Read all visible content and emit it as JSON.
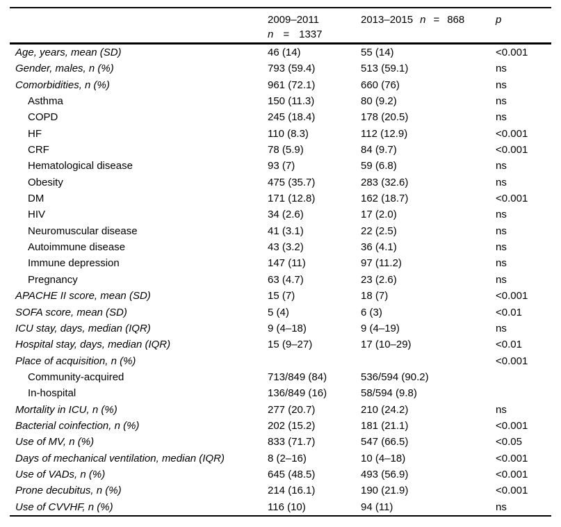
{
  "colors": {
    "text": "#000000",
    "background": "#ffffff",
    "rule": "#000000"
  },
  "table": {
    "columns": {
      "period1": {
        "range": "2009–2011",
        "n_label": "n",
        "equals": "=",
        "n_value": "1337"
      },
      "period2": {
        "range": "2013–2015",
        "n_label": "n",
        "equals": "=",
        "n_value": "868"
      },
      "p_label": "p"
    },
    "rows": [
      {
        "label": "Age, years, mean (SD)",
        "italic": true,
        "indent": false,
        "period1": "46 (14)",
        "period2": "55 (14)",
        "p": "<0.001"
      },
      {
        "label": "Gender, males, n (%)",
        "italic": true,
        "indent": false,
        "period1": "793 (59.4)",
        "period2": "513 (59.1)",
        "p": "ns"
      },
      {
        "label": "Comorbidities, n (%)",
        "italic": true,
        "indent": false,
        "period1": "961 (72.1)",
        "period2": "660 (76)",
        "p": "ns"
      },
      {
        "label": "Asthma",
        "italic": false,
        "indent": true,
        "period1": "150 (11.3)",
        "period2": "80 (9.2)",
        "p": "ns"
      },
      {
        "label": "COPD",
        "italic": false,
        "indent": true,
        "period1": "245 (18.4)",
        "period2": "178 (20.5)",
        "p": "ns"
      },
      {
        "label": "HF",
        "italic": false,
        "indent": true,
        "period1": "110 (8.3)",
        "period2": "112 (12.9)",
        "p": "<0.001"
      },
      {
        "label": "CRF",
        "italic": false,
        "indent": true,
        "period1": "78 (5.9)",
        "period2": "84 (9.7)",
        "p": "<0.001"
      },
      {
        "label": "Hematological disease",
        "italic": false,
        "indent": true,
        "period1": "93 (7)",
        "period2": "59 (6.8)",
        "p": "ns"
      },
      {
        "label": "Obesity",
        "italic": false,
        "indent": true,
        "period1": "475 (35.7)",
        "period2": "283 (32.6)",
        "p": "ns"
      },
      {
        "label": "DM",
        "italic": false,
        "indent": true,
        "period1": "171 (12.8)",
        "period2": "162 (18.7)",
        "p": "<0.001"
      },
      {
        "label": "HIV",
        "italic": false,
        "indent": true,
        "period1": "34 (2.6)",
        "period2": "17 (2.0)",
        "p": "ns"
      },
      {
        "label": "Neuromuscular disease",
        "italic": false,
        "indent": true,
        "period1": "41 (3.1)",
        "period2": "22 (2.5)",
        "p": "ns"
      },
      {
        "label": "Autoimmune disease",
        "italic": false,
        "indent": true,
        "period1": "43 (3.2)",
        "period2": "36 (4.1)",
        "p": "ns"
      },
      {
        "label": "Immune depression",
        "italic": false,
        "indent": true,
        "period1": "147 (11)",
        "period2": "97 (11.2)",
        "p": "ns"
      },
      {
        "label": "Pregnancy",
        "italic": false,
        "indent": true,
        "period1": "63 (4.7)",
        "period2": "23 (2.6)",
        "p": "ns"
      },
      {
        "label": "APACHE II score, mean (SD)",
        "italic": true,
        "indent": false,
        "period1": "15 (7)",
        "period2": "18 (7)",
        "p": "<0.001"
      },
      {
        "label": "SOFA score, mean (SD)",
        "italic": true,
        "indent": false,
        "period1": "5 (4)",
        "period2": "6 (3)",
        "p": "<0.01"
      },
      {
        "label": "ICU stay, days, median (IQR)",
        "italic": true,
        "indent": false,
        "period1": "9 (4–18)",
        "period2": "9 (4–19)",
        "p": "ns"
      },
      {
        "label": "Hospital stay, days, median (IQR)",
        "italic": true,
        "indent": false,
        "period1": "15 (9–27)",
        "period2": "17 (10–29)",
        "p": "<0.01"
      },
      {
        "label": "Place of acquisition, n (%)",
        "italic": true,
        "indent": false,
        "period1": "",
        "period2": "",
        "p": "<0.001"
      },
      {
        "label": "Community-acquired",
        "italic": false,
        "indent": true,
        "period1": "713/849 (84)",
        "period2": "536/594 (90.2)",
        "p": ""
      },
      {
        "label": "In-hospital",
        "italic": false,
        "indent": true,
        "period1": "136/849 (16)",
        "period2": "58/594 (9.8)",
        "p": ""
      },
      {
        "label": "Mortality in ICU, n (%)",
        "italic": true,
        "indent": false,
        "period1": "277 (20.7)",
        "period2": "210 (24.2)",
        "p": "ns"
      },
      {
        "label": "Bacterial coinfection, n (%)",
        "italic": true,
        "indent": false,
        "period1": "202 (15.2)",
        "period2": "181 (21.1)",
        "p": "<0.001"
      },
      {
        "label": "Use of MV, n (%)",
        "italic": true,
        "indent": false,
        "period1": "833 (71.7)",
        "period2": "547 (66.5)",
        "p": "<0.05"
      },
      {
        "label": "Days of mechanical ventilation, median (IQR)",
        "italic": true,
        "indent": false,
        "period1": "8 (2–16)",
        "period2": "10 (4–18)",
        "p": "<0.001"
      },
      {
        "label": "Use of VADs, n (%)",
        "italic": true,
        "indent": false,
        "period1": "645 (48.5)",
        "period2": "493 (56.9)",
        "p": "<0.001"
      },
      {
        "label": "Prone decubitus, n (%)",
        "italic": true,
        "indent": false,
        "period1": "214 (16.1)",
        "period2": "190 (21.9)",
        "p": "<0.001"
      },
      {
        "label": "Use of CVVHF, n (%)",
        "italic": true,
        "indent": false,
        "period1": "116 (10)",
        "period2": "94 (11)",
        "p": "ns"
      }
    ]
  }
}
